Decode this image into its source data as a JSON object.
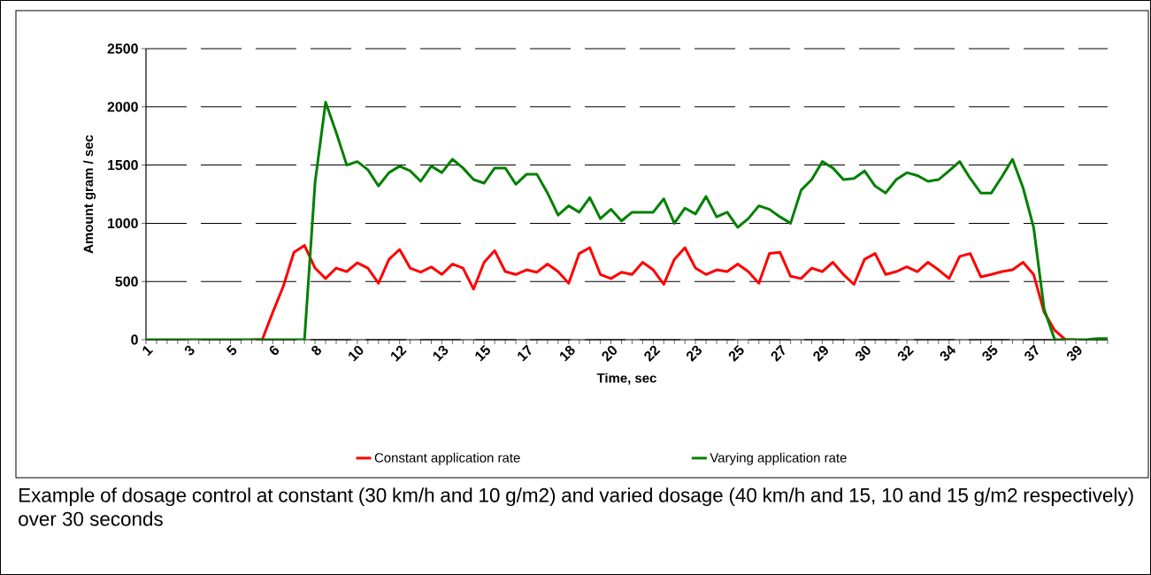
{
  "chart_data": {
    "type": "line",
    "xlabel": "Time, sec",
    "ylabel": "Amount gram / sec",
    "categories": [
      "1",
      null,
      null,
      null,
      "3",
      null,
      null,
      null,
      "5",
      null,
      null,
      null,
      "6",
      null,
      null,
      null,
      "8",
      null,
      null,
      null,
      "10",
      null,
      null,
      null,
      "12",
      null,
      null,
      null,
      "13",
      null,
      null,
      null,
      "15",
      null,
      null,
      null,
      "17",
      null,
      null,
      null,
      "18",
      null,
      null,
      null,
      "20",
      null,
      null,
      null,
      "22",
      null,
      null,
      null,
      "23",
      null,
      null,
      null,
      "25",
      null,
      null,
      null,
      "27",
      null,
      null,
      null,
      "29",
      null,
      null,
      null,
      "30",
      null,
      null,
      null,
      "32",
      null,
      null,
      null,
      "34",
      null,
      null,
      null,
      "35",
      null,
      null,
      null,
      "37",
      null,
      null,
      null,
      "39",
      null,
      null,
      null
    ],
    "series": [
      {
        "name": "Constant application rate",
        "color": "#ff0000",
        "values": [
          null,
          null,
          null,
          null,
          null,
          null,
          null,
          null,
          null,
          null,
          0,
          0,
          235,
          460,
          750,
          810,
          615,
          525,
          615,
          585,
          660,
          615,
          485,
          690,
          775,
          615,
          580,
          625,
          560,
          650,
          615,
          435,
          665,
          765,
          585,
          560,
          600,
          580,
          650,
          585,
          485,
          740,
          790,
          560,
          525,
          580,
          560,
          665,
          600,
          475,
          690,
          790,
          615,
          560,
          600,
          585,
          650,
          585,
          485,
          740,
          750,
          545,
          525,
          615,
          585,
          665,
          560,
          475,
          690,
          740,
          560,
          585,
          625,
          585,
          665,
          600,
          525,
          715,
          740,
          540,
          560,
          585,
          600,
          665,
          560,
          235,
          80,
          0,
          0,
          null,
          null,
          null
        ]
      },
      {
        "name": "Varying application rate",
        "color": "#008000",
        "values": [
          0,
          0,
          0,
          0,
          0,
          0,
          0,
          0,
          0,
          0,
          0,
          0,
          0,
          0,
          0,
          0,
          1350,
          2040,
          1780,
          1500,
          1530,
          1460,
          1320,
          1435,
          1490,
          1450,
          1360,
          1490,
          1435,
          1550,
          1475,
          1375,
          1345,
          1475,
          1475,
          1335,
          1420,
          1420,
          1260,
          1070,
          1150,
          1095,
          1220,
          1040,
          1120,
          1020,
          1095,
          1095,
          1095,
          1210,
          1000,
          1130,
          1080,
          1230,
          1055,
          1095,
          965,
          1040,
          1150,
          1120,
          1055,
          1000,
          1285,
          1375,
          1530,
          1475,
          1375,
          1385,
          1450,
          1320,
          1260,
          1375,
          1435,
          1410,
          1360,
          1375,
          1450,
          1530,
          1385,
          1260,
          1260,
          1400,
          1550,
          1305,
          965,
          260,
          0,
          0,
          0,
          0,
          10,
          10
        ]
      }
    ],
    "ylim": [
      0,
      2500
    ],
    "yticks": [
      0,
      500,
      1000,
      1500,
      2000,
      2500
    ],
    "grid": "y",
    "legend": "bottom",
    "annotations": [
      "Example of dosage control at constant (30 km/h and 10 g/m2) and varied dosage (40 km/h and 15, 10 and 15 g/m2 respectively) over 30 seconds"
    ]
  }
}
